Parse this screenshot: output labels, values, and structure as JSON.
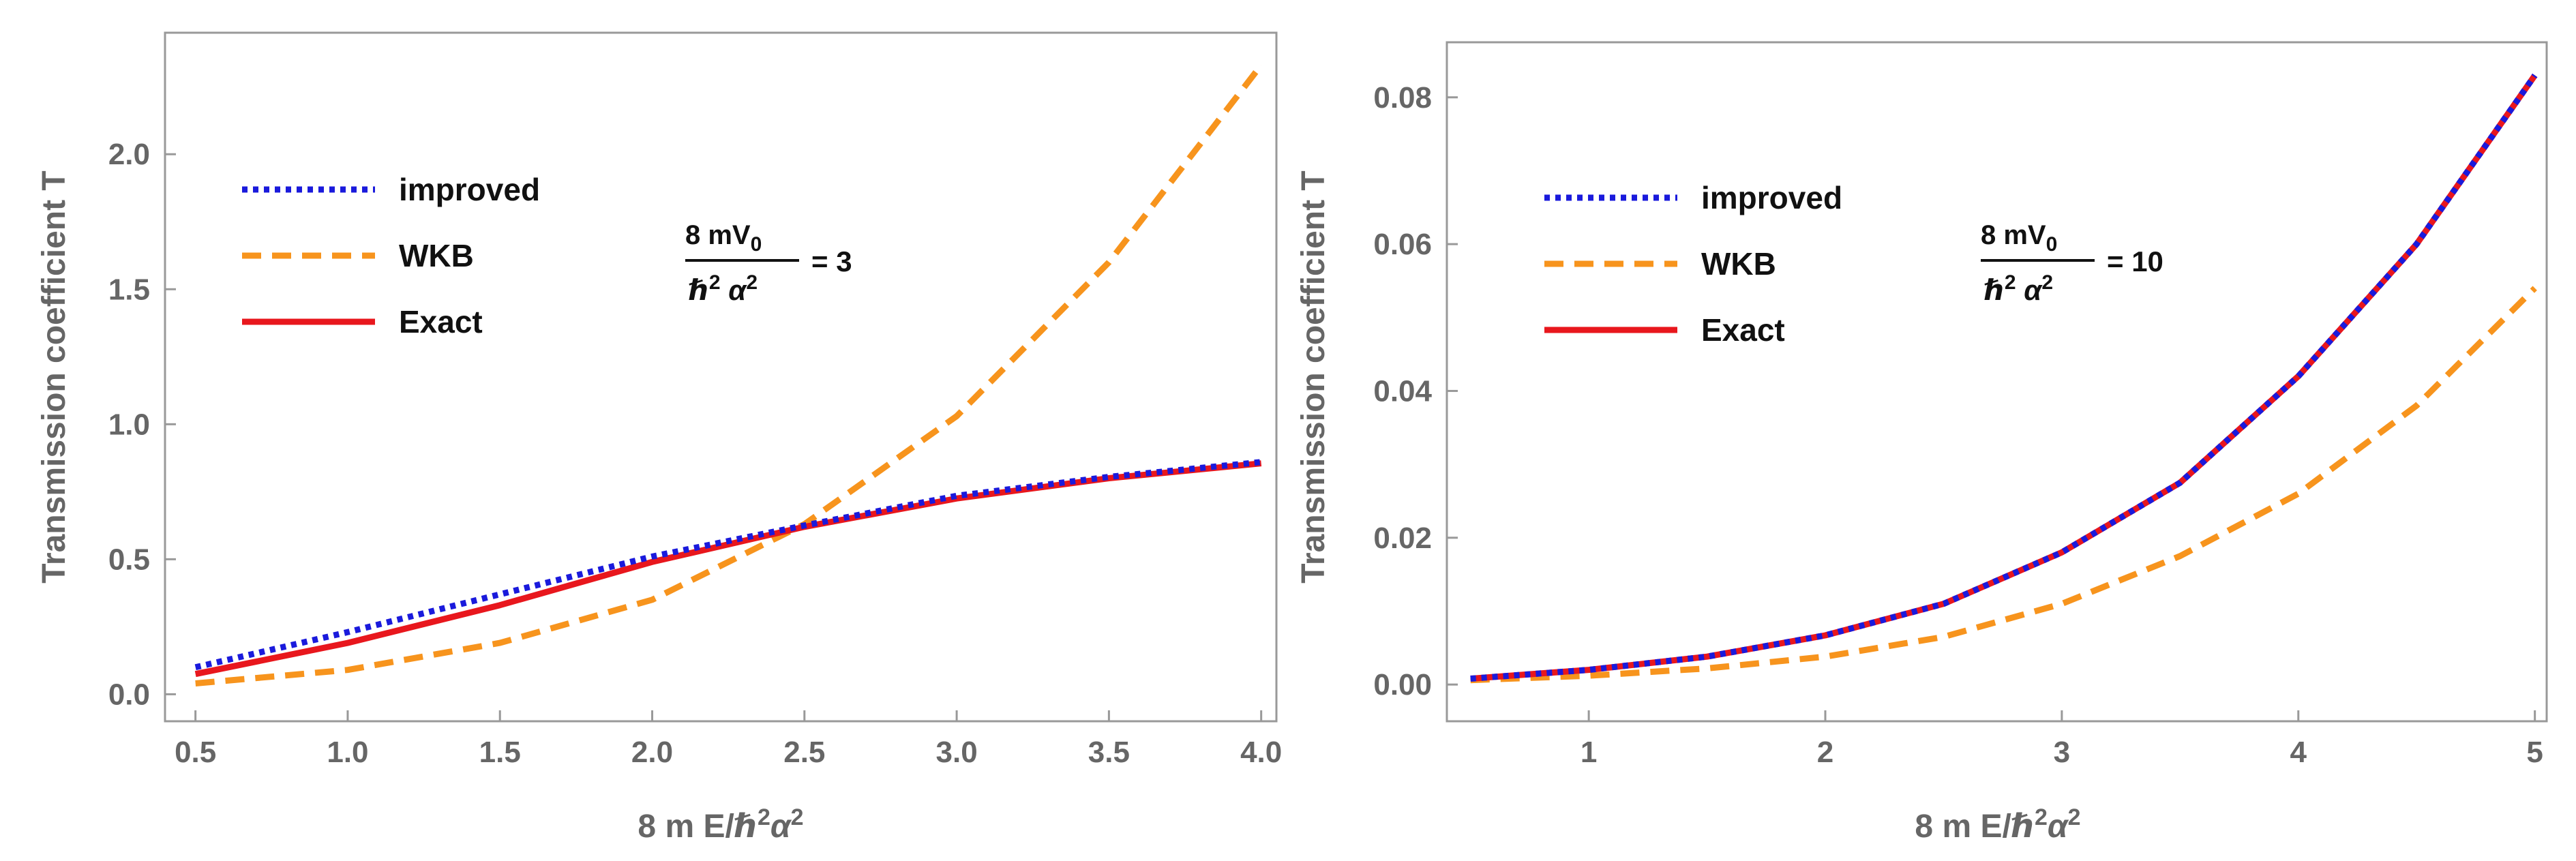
{
  "chart_data": [
    {
      "type": "line",
      "xlabel_main": "8 m E/",
      "xlabel_sup": "2",
      "xlabel_end": "2",
      "ylabel": "Transmission coefficient T",
      "xlim": [
        0.4,
        4.05
      ],
      "ylim": [
        -0.1,
        2.45
      ],
      "xticks": [
        0.5,
        1.0,
        1.5,
        2.0,
        2.5,
        3.0,
        3.5,
        4.0
      ],
      "xtick_labels": [
        "0.5",
        "1.0",
        "1.5",
        "2.0",
        "2.5",
        "3.0",
        "3.5",
        "4.0"
      ],
      "yticks": [
        0.0,
        0.5,
        1.0,
        1.5,
        2.0
      ],
      "ytick_labels": [
        "0.0",
        "0.5",
        "1.0",
        "1.5",
        "2.0"
      ],
      "legend": [
        "improved",
        "WKB",
        "Exact"
      ],
      "annotation": {
        "numerator": "8 mV",
        "subscript": "0",
        "denominator": "ℏ",
        "denominator_exp": "2",
        "alpha": "α",
        "alpha_exp": "2",
        "value": "= 3"
      },
      "series": [
        {
          "name": "improved",
          "color": "#1a1adc",
          "style": "dotted",
          "x": [
            0.5,
            1.0,
            1.5,
            2.0,
            2.5,
            3.0,
            3.5,
            4.0
          ],
          "y": [
            0.1,
            0.23,
            0.37,
            0.51,
            0.625,
            0.735,
            0.805,
            0.86
          ]
        },
        {
          "name": "WKB",
          "color": "#f7941d",
          "style": "dashed",
          "x": [
            0.5,
            1.0,
            1.5,
            2.0,
            2.5,
            3.0,
            3.5,
            4.0
          ],
          "y": [
            0.04,
            0.09,
            0.19,
            0.35,
            0.63,
            1.03,
            1.6,
            2.33
          ]
        },
        {
          "name": "Exact",
          "color": "#e8171d",
          "style": "solid",
          "x": [
            0.5,
            1.0,
            1.5,
            2.0,
            2.5,
            3.0,
            3.5,
            4.0
          ],
          "y": [
            0.075,
            0.19,
            0.33,
            0.49,
            0.62,
            0.725,
            0.8,
            0.855
          ]
        }
      ]
    },
    {
      "type": "line",
      "xlabel_main": "8 m E/",
      "xlabel_sup": "2",
      "xlabel_end": "2",
      "ylabel": "Transmission coefficient T",
      "xlim": [
        0.4,
        5.05
      ],
      "ylim": [
        -0.005,
        0.0875
      ],
      "xticks": [
        1,
        2,
        3,
        4,
        5
      ],
      "xtick_labels": [
        "1",
        "2",
        "3",
        "4",
        "5"
      ],
      "yticks": [
        0.0,
        0.02,
        0.04,
        0.06,
        0.08
      ],
      "ytick_labels": [
        "0.00",
        "0.02",
        "0.04",
        "0.06",
        "0.08"
      ],
      "legend": [
        "improved",
        "WKB",
        "Exact"
      ],
      "annotation": {
        "numerator": "8 mV",
        "subscript": "0",
        "denominator": "ℏ",
        "denominator_exp": "2",
        "alpha": "α",
        "alpha_exp": "2",
        "value": "= 10"
      },
      "series": [
        {
          "name": "improved",
          "color": "#1a1adc",
          "style": "dotted",
          "x": [
            0.5,
            1.0,
            1.5,
            2.0,
            2.5,
            3.0,
            3.5,
            4.0,
            4.5,
            5.0
          ],
          "y": [
            0.0008,
            0.002,
            0.0038,
            0.0067,
            0.011,
            0.018,
            0.0275,
            0.042,
            0.06,
            0.083
          ]
        },
        {
          "name": "WKB",
          "color": "#f7941d",
          "style": "dashed",
          "x": [
            0.5,
            1.0,
            1.5,
            2.0,
            2.5,
            3.0,
            3.5,
            4.0,
            4.5,
            5.0
          ],
          "y": [
            0.0006,
            0.0012,
            0.0022,
            0.0038,
            0.0065,
            0.011,
            0.0175,
            0.026,
            0.038,
            0.054
          ]
        },
        {
          "name": "Exact",
          "color": "#e8171d",
          "style": "solid",
          "x": [
            0.5,
            1.0,
            1.5,
            2.0,
            2.5,
            3.0,
            3.5,
            4.0,
            4.5,
            5.0
          ],
          "y": [
            0.0008,
            0.002,
            0.0038,
            0.0067,
            0.011,
            0.018,
            0.0275,
            0.042,
            0.06,
            0.083
          ]
        }
      ]
    }
  ]
}
